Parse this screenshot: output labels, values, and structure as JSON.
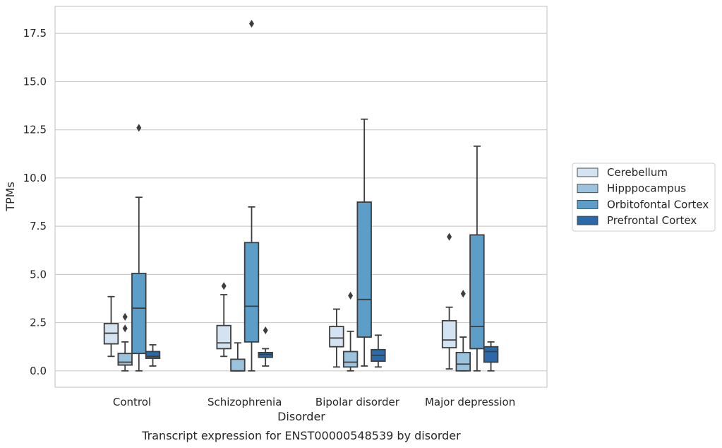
{
  "caption": "Transcript expression for ENST00000548539 by disorder",
  "chart_data": {
    "type": "boxplot",
    "xlabel": "Disorder",
    "ylabel": "TPMs",
    "ylim": [
      -0.85,
      18.9
    ],
    "yticks": [
      "0.0",
      "2.5",
      "5.0",
      "7.5",
      "10.0",
      "12.5",
      "15.0",
      "17.5"
    ],
    "ytick_values": [
      0,
      2.5,
      5,
      7.5,
      10,
      12.5,
      15,
      17.5
    ],
    "categories": [
      "Control",
      "Schizophrenia",
      "Bipolar disorder",
      "Major depression"
    ],
    "grid": "horizontal",
    "legend_position": "right",
    "series": [
      {
        "name": "Cerebellum",
        "color": "#d4e3f1",
        "boxes": [
          {
            "min": 0.75,
            "q1": 1.4,
            "median": 1.95,
            "q3": 2.45,
            "max": 3.85,
            "outliers": []
          },
          {
            "min": 0.75,
            "q1": 1.15,
            "median": 1.45,
            "q3": 2.35,
            "max": 3.95,
            "outliers": [
              4.4
            ]
          },
          {
            "min": 0.2,
            "q1": 1.25,
            "median": 1.7,
            "q3": 2.3,
            "max": 3.2,
            "outliers": []
          },
          {
            "min": 0.1,
            "q1": 1.2,
            "median": 1.6,
            "q3": 2.6,
            "max": 3.3,
            "outliers": [
              6.95
            ]
          }
        ]
      },
      {
        "name": "Hipppocampus",
        "color": "#9cc3de",
        "boxes": [
          {
            "min": 0.0,
            "q1": 0.3,
            "median": 0.45,
            "q3": 0.9,
            "max": 1.5,
            "outliers": [
              2.2,
              2.8
            ]
          },
          {
            "min": 0.0,
            "q1": 0.0,
            "median": 0.0,
            "q3": 0.6,
            "max": 1.45,
            "outliers": []
          },
          {
            "min": 0.0,
            "q1": 0.2,
            "median": 0.45,
            "q3": 1.0,
            "max": 2.05,
            "outliers": [
              3.9
            ]
          },
          {
            "min": 0.0,
            "q1": 0.0,
            "median": 0.35,
            "q3": 0.95,
            "max": 1.75,
            "outliers": [
              4.0
            ]
          }
        ]
      },
      {
        "name": "Orbitofontal Cortex",
        "color": "#5c9ec8",
        "boxes": [
          {
            "min": 0.0,
            "q1": 0.9,
            "median": 3.25,
            "q3": 5.05,
            "max": 9.0,
            "outliers": [
              12.6
            ]
          },
          {
            "min": 0.0,
            "q1": 1.5,
            "median": 3.35,
            "q3": 6.65,
            "max": 8.5,
            "outliers": [
              18.0
            ]
          },
          {
            "min": 0.25,
            "q1": 1.75,
            "median": 3.7,
            "q3": 8.75,
            "max": 13.05,
            "outliers": []
          },
          {
            "min": 0.0,
            "q1": 1.15,
            "median": 2.3,
            "q3": 7.05,
            "max": 11.65,
            "outliers": []
          }
        ]
      },
      {
        "name": "Prefrontal Cortex",
        "color": "#2a6aaa",
        "boxes": [
          {
            "min": 0.25,
            "q1": 0.65,
            "median": 0.75,
            "q3": 1.0,
            "max": 1.35,
            "outliers": []
          },
          {
            "min": 0.25,
            "q1": 0.7,
            "median": 0.85,
            "q3": 0.95,
            "max": 1.15,
            "outliers": [
              2.1
            ]
          },
          {
            "min": 0.2,
            "q1": 0.5,
            "median": 0.8,
            "q3": 1.1,
            "max": 1.85,
            "outliers": []
          },
          {
            "min": 0.0,
            "q1": 0.45,
            "median": 1.0,
            "q3": 1.25,
            "max": 1.5,
            "outliers": []
          }
        ]
      }
    ]
  }
}
